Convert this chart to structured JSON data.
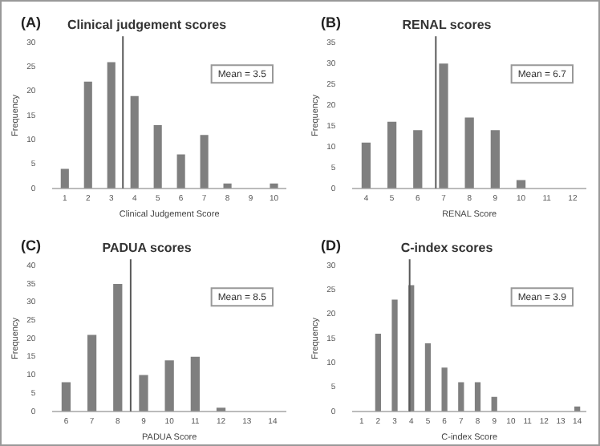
{
  "chart_data": [
    {
      "type": "bar",
      "title": "Clinical judgement scores",
      "annotations": [
        "(A)"
      ],
      "xlabel": "Clinical Judgement Score",
      "ylabel": "Frequency",
      "x": [
        1,
        2,
        3,
        4,
        5,
        6,
        7,
        8,
        9,
        10
      ],
      "values": [
        4,
        22,
        26,
        19,
        13,
        7,
        11,
        1,
        0,
        1
      ],
      "color": "#7f7f7f",
      "xlim": [
        0.5,
        10.5
      ],
      "xticks": [
        1,
        2,
        3,
        4,
        5,
        6,
        7,
        8,
        9,
        10
      ],
      "ylim": [
        0,
        30
      ],
      "yticks": [
        0,
        5,
        10,
        15,
        20,
        25,
        30
      ],
      "grid": false,
      "legend": false,
      "ref_lines": [
        {
          "axis": "x",
          "value": 3.5,
          "label": "Mean = 3.5",
          "color": "#595959"
        }
      ]
    },
    {
      "type": "bar",
      "title": "RENAL scores",
      "annotations": [
        "(B)"
      ],
      "xlabel": "RENAL Score",
      "ylabel": "Frequency",
      "x": [
        4,
        5,
        6,
        7,
        8,
        9,
        10,
        11,
        12
      ],
      "values": [
        11,
        16,
        14,
        30,
        17,
        14,
        2,
        0,
        0
      ],
      "color": "#7f7f7f",
      "xlim": [
        3.5,
        12.5
      ],
      "xticks": [
        4,
        5,
        6,
        7,
        8,
        9,
        10,
        11,
        12
      ],
      "ylim": [
        0,
        35
      ],
      "yticks": [
        0,
        5,
        10,
        15,
        20,
        25,
        30,
        35
      ],
      "grid": false,
      "legend": false,
      "ref_lines": [
        {
          "axis": "x",
          "value": 6.7,
          "label": "Mean = 6.7",
          "color": "#595959"
        }
      ]
    },
    {
      "type": "bar",
      "title": "PADUA scores",
      "annotations": [
        "(C)"
      ],
      "xlabel": "PADUA Score",
      "ylabel": "Frequency",
      "x": [
        6,
        7,
        8,
        9,
        10,
        11,
        12,
        13,
        14
      ],
      "values": [
        8,
        21,
        35,
        10,
        14,
        15,
        1,
        0,
        0
      ],
      "color": "#7f7f7f",
      "xlim": [
        5.5,
        14.5
      ],
      "xticks": [
        6,
        7,
        8,
        9,
        10,
        11,
        12,
        13,
        14
      ],
      "ylim": [
        0,
        40
      ],
      "yticks": [
        0,
        5,
        10,
        15,
        20,
        25,
        30,
        35,
        40
      ],
      "grid": false,
      "legend": false,
      "ref_lines": [
        {
          "axis": "x",
          "value": 8.5,
          "label": "Mean = 8.5",
          "color": "#595959"
        }
      ]
    },
    {
      "type": "bar",
      "title": "C-index scores",
      "annotations": [
        "(D)"
      ],
      "xlabel": "C-index Score",
      "ylabel": "Frequency",
      "x": [
        1,
        2,
        3,
        4,
        5,
        6,
        7,
        8,
        9,
        10,
        11,
        12,
        13,
        14
      ],
      "values": [
        0,
        16,
        23,
        26,
        14,
        9,
        6,
        6,
        3,
        0,
        0,
        0,
        0,
        1
      ],
      "color": "#7f7f7f",
      "xlim": [
        0.5,
        14.5
      ],
      "xticks": [
        1,
        2,
        3,
        4,
        5,
        6,
        7,
        8,
        9,
        10,
        11,
        12,
        13,
        14
      ],
      "ylim": [
        0,
        30
      ],
      "yticks": [
        0,
        5,
        10,
        15,
        20,
        25,
        30
      ],
      "grid": false,
      "legend": false,
      "ref_lines": [
        {
          "axis": "x",
          "value": 3.9,
          "label": "Mean = 3.9",
          "color": "#595959"
        }
      ]
    }
  ]
}
